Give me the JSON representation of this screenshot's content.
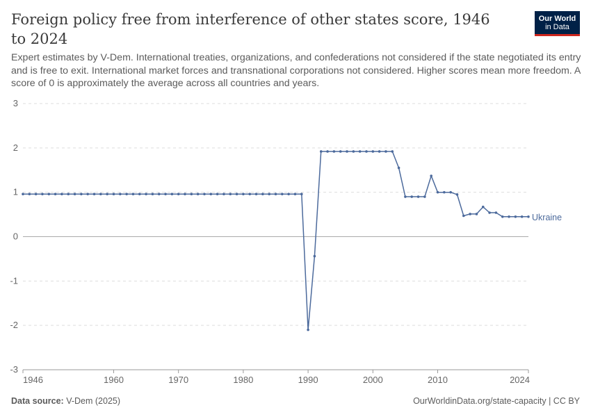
{
  "header": {
    "title": "Foreign policy free from interference of other states score, 1946 to 2024",
    "subtitle": "Expert estimates by V-Dem. International treaties, organizations, and confederations not considered if the state negotiated its entry and is free to exit. International market forces and transnational corporations not considered. Higher scores mean more freedom. A score of 0 is approximately the average across all countries and years.",
    "logo_line1": "Our World",
    "logo_line2": "in Data"
  },
  "footer": {
    "source_label": "Data source:",
    "source_value": "V-Dem (2025)",
    "url": "OurWorldinData.org/state-capacity | CC BY"
  },
  "colors": {
    "series": "#4c6a9c",
    "grid": "#dddddd",
    "zero_line": "#aaaaaa",
    "logo_bg": "#002147",
    "logo_accent": "#ce261e"
  },
  "chart_data": {
    "type": "line",
    "title": "Foreign policy free from interference of other states score, 1946 to 2024",
    "xlim": [
      1946,
      2024
    ],
    "ylim": [
      -3,
      3
    ],
    "x_ticks": [
      1946,
      1960,
      1970,
      1980,
      1990,
      2000,
      2010,
      2024
    ],
    "y_ticks": [
      -3,
      -2,
      -1,
      0,
      1,
      2,
      3
    ],
    "grid": true,
    "series": [
      {
        "name": "Ukraine",
        "x": [
          1946,
          1947,
          1948,
          1949,
          1950,
          1951,
          1952,
          1953,
          1954,
          1955,
          1956,
          1957,
          1958,
          1959,
          1960,
          1961,
          1962,
          1963,
          1964,
          1965,
          1966,
          1967,
          1968,
          1969,
          1970,
          1971,
          1972,
          1973,
          1974,
          1975,
          1976,
          1977,
          1978,
          1979,
          1980,
          1981,
          1982,
          1983,
          1984,
          1985,
          1986,
          1987,
          1988,
          1989,
          1990,
          1991,
          1992,
          1993,
          1994,
          1995,
          1996,
          1997,
          1998,
          1999,
          2000,
          2001,
          2002,
          2003,
          2004,
          2005,
          2006,
          2007,
          2008,
          2009,
          2010,
          2011,
          2012,
          2013,
          2014,
          2015,
          2016,
          2017,
          2018,
          2019,
          2020,
          2021,
          2022,
          2023,
          2024
        ],
        "y": [
          0.96,
          0.96,
          0.96,
          0.96,
          0.96,
          0.96,
          0.96,
          0.96,
          0.96,
          0.96,
          0.96,
          0.96,
          0.96,
          0.96,
          0.96,
          0.96,
          0.96,
          0.96,
          0.96,
          0.96,
          0.96,
          0.96,
          0.96,
          0.96,
          0.96,
          0.96,
          0.96,
          0.96,
          0.96,
          0.96,
          0.96,
          0.96,
          0.96,
          0.96,
          0.96,
          0.96,
          0.96,
          0.96,
          0.96,
          0.96,
          0.96,
          0.96,
          0.96,
          0.96,
          -2.1,
          -0.44,
          1.92,
          1.92,
          1.92,
          1.92,
          1.92,
          1.92,
          1.92,
          1.92,
          1.92,
          1.92,
          1.92,
          1.92,
          1.55,
          0.9,
          0.9,
          0.9,
          0.9,
          1.37,
          1.0,
          1.0,
          1.0,
          0.95,
          0.47,
          0.51,
          0.51,
          0.67,
          0.54,
          0.54,
          0.45,
          0.45,
          0.45,
          0.45,
          0.45
        ]
      }
    ]
  }
}
